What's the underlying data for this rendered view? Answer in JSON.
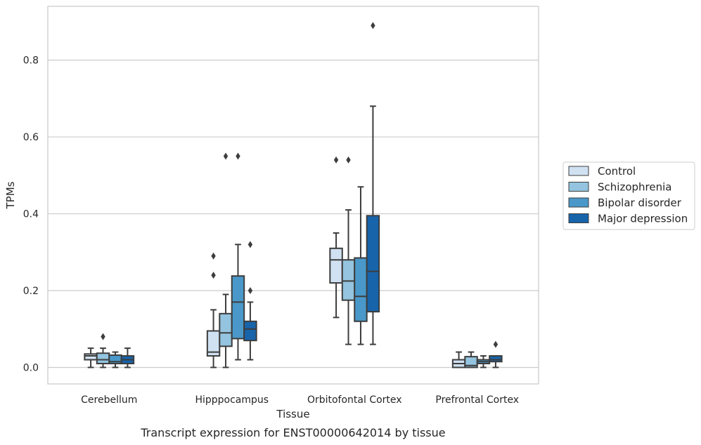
{
  "chart_data": {
    "type": "box",
    "title": "",
    "caption": "Transcript expression for ENST00000642014 by tissue",
    "xlabel": "Tissue",
    "ylabel": "TPMs",
    "ylim": [
      -0.043,
      0.94
    ],
    "yticks": [
      0.0,
      0.2,
      0.4,
      0.6,
      0.8
    ],
    "ytick_labels": [
      "0.0",
      "0.2",
      "0.4",
      "0.6",
      "0.8"
    ],
    "grid": "horizontal",
    "legend_position": "right",
    "categories": [
      "Cerebellum",
      "Hipppocampus",
      "Orbitofontal Cortex",
      "Prefrontal Cortex"
    ],
    "series": [
      {
        "name": "Control",
        "color": "#d0e1f2",
        "boxes": [
          {
            "whislo": 0.0,
            "q1": 0.02,
            "med": 0.03,
            "q3": 0.035,
            "whishi": 0.05,
            "fliers": []
          },
          {
            "whislo": 0.0,
            "q1": 0.03,
            "med": 0.04,
            "q3": 0.095,
            "whishi": 0.15,
            "fliers": [
              0.24,
              0.29
            ]
          },
          {
            "whislo": 0.13,
            "q1": 0.22,
            "med": 0.28,
            "q3": 0.31,
            "whishi": 0.35,
            "fliers": [
              0.54
            ]
          },
          {
            "whislo": 0.0,
            "q1": 0.0,
            "med": 0.01,
            "q3": 0.02,
            "whishi": 0.04,
            "fliers": []
          }
        ]
      },
      {
        "name": "Schizophrenia",
        "color": "#94c4df",
        "boxes": [
          {
            "whislo": 0.0,
            "q1": 0.01,
            "med": 0.02,
            "q3": 0.037,
            "whishi": 0.05,
            "fliers": [
              0.08
            ]
          },
          {
            "whislo": 0.0,
            "q1": 0.055,
            "med": 0.09,
            "q3": 0.14,
            "whishi": 0.19,
            "fliers": [
              0.55
            ]
          },
          {
            "whislo": 0.06,
            "q1": 0.175,
            "med": 0.225,
            "q3": 0.28,
            "whishi": 0.41,
            "fliers": [
              0.54
            ]
          },
          {
            "whislo": 0.0,
            "q1": 0.0,
            "med": 0.005,
            "q3": 0.028,
            "whishi": 0.04,
            "fliers": []
          }
        ]
      },
      {
        "name": "Bipolar disorder",
        "color": "#4a98c9",
        "boxes": [
          {
            "whislo": 0.0,
            "q1": 0.01,
            "med": 0.015,
            "q3": 0.032,
            "whishi": 0.04,
            "fliers": []
          },
          {
            "whislo": 0.02,
            "q1": 0.075,
            "med": 0.17,
            "q3": 0.238,
            "whishi": 0.32,
            "fliers": [
              0.55
            ]
          },
          {
            "whislo": 0.06,
            "q1": 0.12,
            "med": 0.185,
            "q3": 0.285,
            "whishi": 0.47,
            "fliers": []
          },
          {
            "whislo": 0.0,
            "q1": 0.01,
            "med": 0.015,
            "q3": 0.02,
            "whishi": 0.03,
            "fliers": []
          }
        ]
      },
      {
        "name": "Major depression",
        "color": "#1764ab",
        "boxes": [
          {
            "whislo": 0.0,
            "q1": 0.01,
            "med": 0.02,
            "q3": 0.03,
            "whishi": 0.05,
            "fliers": []
          },
          {
            "whislo": 0.02,
            "q1": 0.07,
            "med": 0.1,
            "q3": 0.12,
            "whishi": 0.17,
            "fliers": [
              0.2,
              0.32
            ]
          },
          {
            "whislo": 0.06,
            "q1": 0.145,
            "med": 0.25,
            "q3": 0.395,
            "whishi": 0.68,
            "fliers": [
              0.89
            ]
          },
          {
            "whislo": 0.0,
            "q1": 0.015,
            "med": 0.02,
            "q3": 0.03,
            "whishi": 0.03,
            "fliers": [
              0.06
            ]
          }
        ]
      }
    ]
  }
}
